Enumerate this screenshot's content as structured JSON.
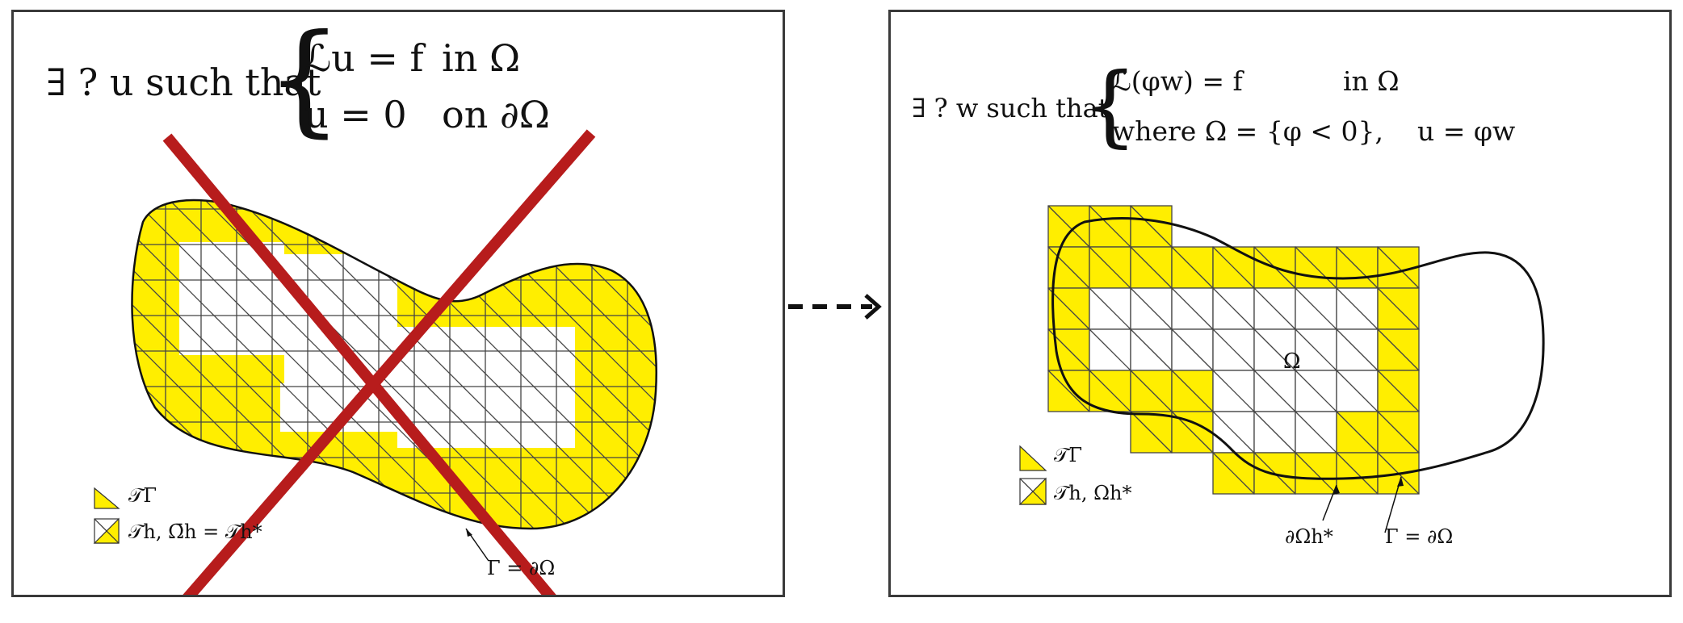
{
  "left_panel": {
    "eq_prefix": "∃ ? u such that",
    "eq_line1_lhs": "ℒu = f",
    "eq_line1_rhs": "in Ω",
    "eq_line2_lhs": "u = 0",
    "eq_line2_rhs": "on ∂Ω",
    "legend_1": "𝒯Γ",
    "legend_2": "𝒯h, Ω̄h = 𝒯h*",
    "boundary_label": "Γ = ∂Ω",
    "cross_color": "#b71c1c",
    "fill_color": "#ffee00"
  },
  "arrow": {
    "style": "dashed"
  },
  "right_panel": {
    "eq_prefix": "∃ ? w such that",
    "eq_line1_lhs": "ℒ(φw) = f",
    "eq_line1_rhs": "in Ω",
    "eq_line2": "where Ω = {φ < 0},    u = φw",
    "domain_label": "Ω",
    "legend_1": "𝒯Γ",
    "legend_2": "𝒯h, Ωh*",
    "label_dOmega_h": "∂Ωh*",
    "label_gamma": "Γ = ∂Ω",
    "fill_color": "#ffee00"
  }
}
